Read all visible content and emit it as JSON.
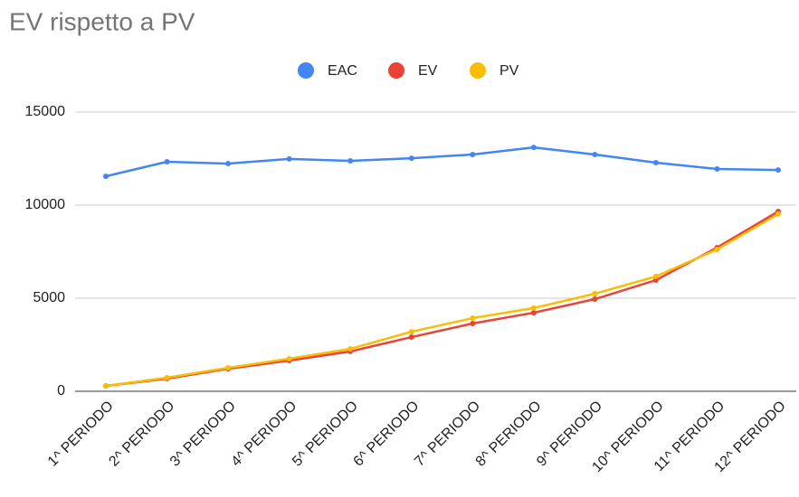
{
  "chart_data": {
    "type": "line",
    "title": "EV rispetto a PV",
    "categories": [
      "1^ PERIODO",
      "2^ PERIODO",
      "3^ PERIODO",
      "4^ PERIODO",
      "5^ PERIODO",
      "6^ PERIODO",
      "7^ PERIODO",
      "8^ PERIODO",
      "9^ PERIODO",
      "10^ PERIODO",
      "11^ PERIODO",
      "12^ PERIODO"
    ],
    "series": [
      {
        "name": "EAC",
        "color": "#4285f4",
        "values": [
          11550,
          12330,
          12230,
          12480,
          12380,
          12520,
          12720,
          13100,
          12720,
          12280,
          11940,
          11890
        ]
      },
      {
        "name": "EV",
        "color": "#ea4335",
        "values": [
          290,
          680,
          1210,
          1650,
          2140,
          2910,
          3640,
          4220,
          4950,
          5970,
          7720,
          9660
        ]
      },
      {
        "name": "PV",
        "color": "#fbbc04",
        "values": [
          290,
          730,
          1260,
          1750,
          2280,
          3200,
          3930,
          4470,
          5240,
          6170,
          7620,
          9520
        ]
      }
    ],
    "ylim": [
      0,
      15000
    ],
    "yticks": [
      0,
      5000,
      10000,
      15000
    ],
    "grid": true,
    "legend": "top"
  }
}
